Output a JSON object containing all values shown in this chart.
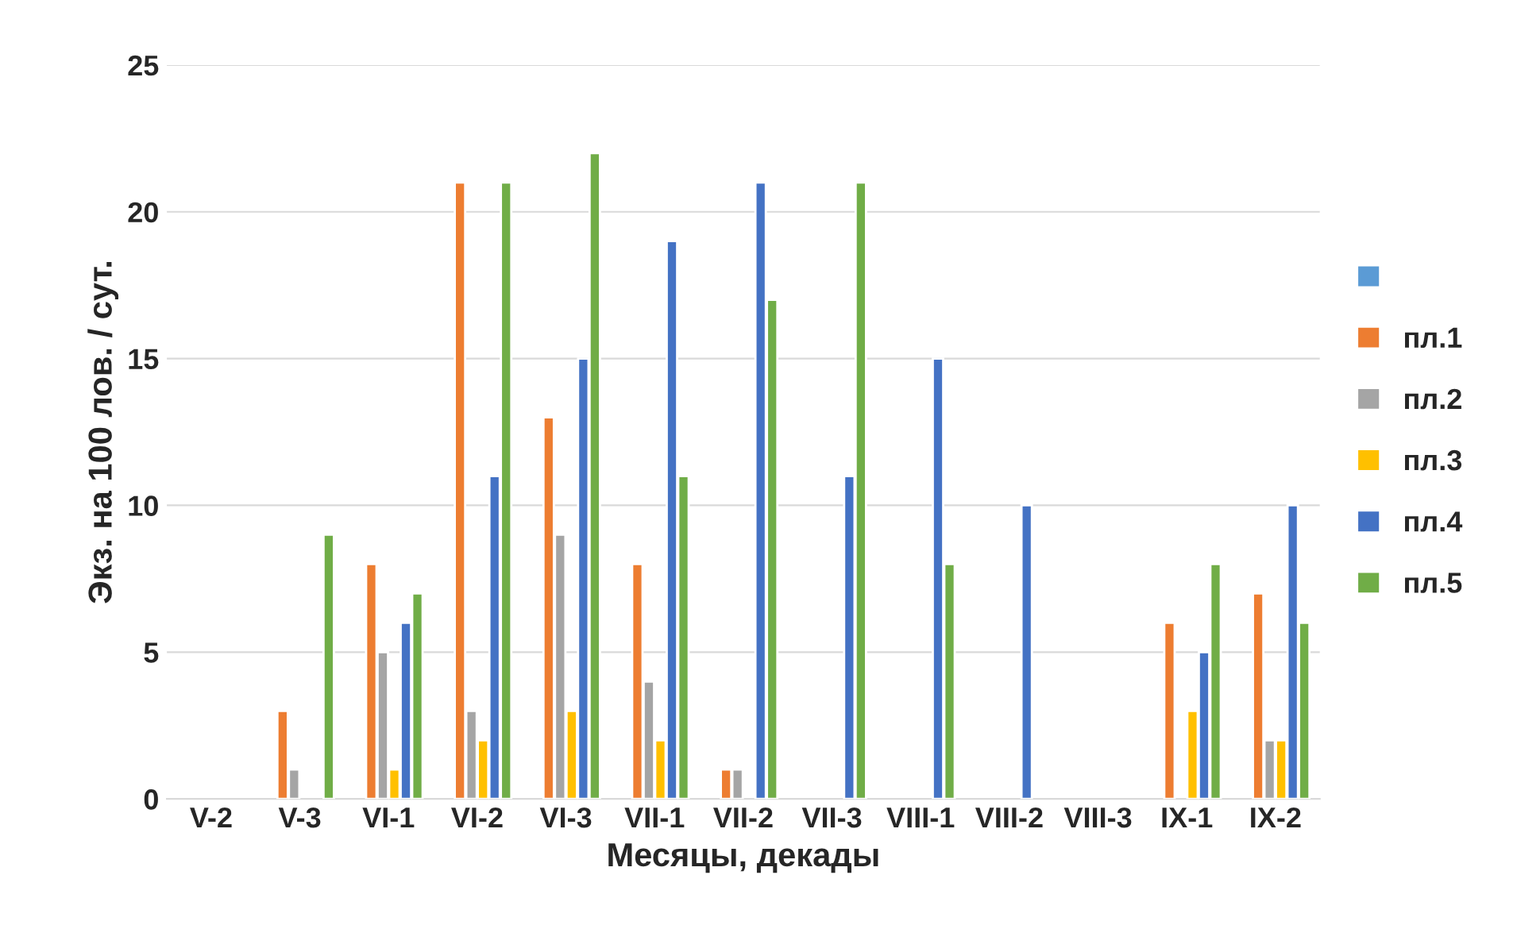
{
  "chart_data": {
    "type": "bar",
    "xlabel": "Месяцы, декады",
    "ylabel": "Экз. на 100 лов. / сут.",
    "categories": [
      "V-2",
      "V-3",
      "VI-1",
      "VI-2",
      "VI-3",
      "VII-1",
      "VII-2",
      "VII-3",
      "VIII-1",
      "VIII-2",
      "VIII-3",
      "IX-1",
      "IX-2"
    ],
    "series": [
      {
        "color": "#5b9bd5",
        "values": [
          null,
          null,
          null,
          null,
          null,
          null,
          null,
          null,
          null,
          null,
          null,
          null,
          null
        ]
      },
      {
        "name": "пл.1",
        "color": "#ed7d31",
        "values": [
          null,
          3,
          8,
          21,
          13,
          8,
          1,
          null,
          null,
          null,
          null,
          6,
          7
        ]
      },
      {
        "name": "пл.2",
        "color": "#a5a5a5",
        "values": [
          null,
          1,
          5,
          3,
          9,
          4,
          1,
          null,
          null,
          null,
          null,
          null,
          2
        ]
      },
      {
        "name": "пл.3",
        "color": "#ffc000",
        "values": [
          null,
          null,
          1,
          2,
          3,
          2,
          null,
          null,
          null,
          null,
          null,
          3,
          2
        ]
      },
      {
        "name": "пл.4",
        "color": "#4472c4",
        "values": [
          null,
          null,
          6,
          11,
          15,
          19,
          21,
          11,
          15,
          10,
          null,
          5,
          10
        ]
      },
      {
        "name": "пл.5",
        "color": "#70ad47",
        "values": [
          null,
          9,
          7,
          21,
          22,
          11,
          17,
          21,
          8,
          null,
          null,
          8,
          6
        ]
      }
    ],
    "ylim": [
      0,
      25
    ],
    "yticks": [
      0,
      5,
      10,
      15,
      20,
      25
    ],
    "grid": "y",
    "legend": "right"
  }
}
